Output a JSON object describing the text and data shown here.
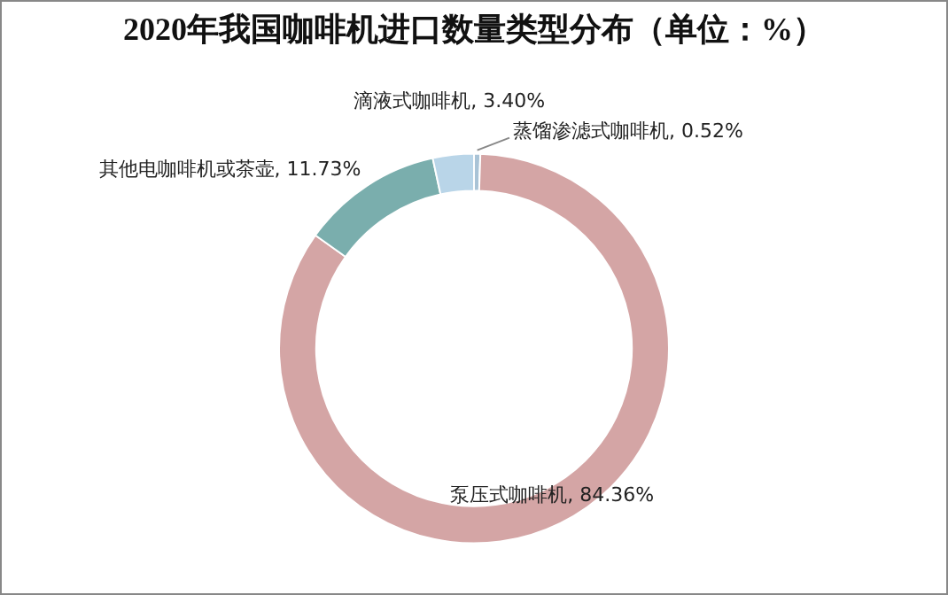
{
  "chart_data": {
    "type": "donut",
    "title": "2020年我国咖啡机进口数量类型分布（单位：%）",
    "categories": [
      "蒸馏渗滤式咖啡机",
      "泵压式咖啡机",
      "其他电咖啡机或茶壶",
      "滴液式咖啡机"
    ],
    "values": [
      0.52,
      84.36,
      11.73,
      3.4
    ],
    "value_labels": [
      "0.52%",
      "84.36%",
      "11.73%",
      "3.40%"
    ],
    "colors": [
      "#a9c3d6",
      "#d4a5a5",
      "#7aaead",
      "#b9d5e8"
    ],
    "legend": false
  }
}
